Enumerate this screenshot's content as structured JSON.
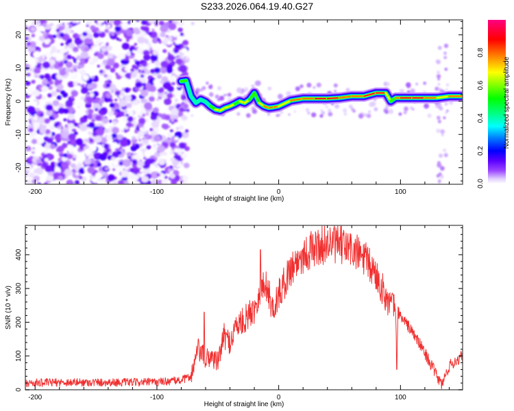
{
  "chart_data": [
    {
      "type": "heatmap",
      "title": "S233.2026.064.19.40.G27",
      "xlabel": "Height of straight line (km)",
      "ylabel": "Frequency (Hz)",
      "xlim": [
        -208,
        151
      ],
      "ylim": [
        -25,
        24.5
      ],
      "xticks": [
        -200,
        -100,
        0,
        100
      ],
      "yticks": [
        -20,
        -10,
        0,
        10,
        20
      ],
      "colorbar": {
        "label": "Normalized spectral amplitude",
        "range": [
          0.0,
          1.0
        ],
        "ticks": [
          "0.0",
          "0.2",
          "0.4",
          "0.6",
          "0.8"
        ],
        "colormap": [
          "#ffffff",
          "#e0ccff",
          "#9a44ff",
          "#5a00ff",
          "#0000ff",
          "#0080ff",
          "#00ffff",
          "#00ff80",
          "#00ff00",
          "#80ff00",
          "#ffff00",
          "#ff8000",
          "#ff0000",
          "#ff0080"
        ]
      },
      "noise_region_x": [
        -208,
        -75
      ],
      "ridge": {
        "x": [
          -80,
          -76,
          -72,
          -68,
          -64,
          -60,
          -56,
          -52,
          -48,
          -44,
          -40,
          -36,
          -32,
          -28,
          -24,
          -20,
          -16,
          -12,
          -8,
          -4,
          0,
          10,
          20,
          30,
          40,
          50,
          60,
          70,
          80,
          88,
          92,
          96,
          100,
          110,
          120,
          130,
          140,
          151
        ],
        "y": [
          6.0,
          6.2,
          1.5,
          -0.5,
          0.5,
          -0.2,
          -1.5,
          -2.5,
          -2.8,
          -2.0,
          -1.5,
          -0.8,
          0.0,
          -0.5,
          0.5,
          2.5,
          -0.5,
          -1.5,
          -2.0,
          -1.8,
          -1.5,
          0.2,
          0.8,
          0.8,
          0.8,
          1.0,
          1.5,
          1.5,
          2.5,
          2.5,
          0.0,
          1.0,
          1.0,
          1.0,
          1.0,
          1.0,
          1.5,
          1.5
        ],
        "amp": [
          0.45,
          0.6,
          0.35,
          0.3,
          0.4,
          0.35,
          0.45,
          0.6,
          0.7,
          0.65,
          0.7,
          0.6,
          0.6,
          0.65,
          0.7,
          0.5,
          0.6,
          0.8,
          0.85,
          0.8,
          0.7,
          0.75,
          0.85,
          0.9,
          0.95,
          0.85,
          0.8,
          0.9,
          0.95,
          0.9,
          0.4,
          0.6,
          0.9,
          0.95,
          0.95,
          0.6,
          0.85,
          0.9
        ]
      }
    },
    {
      "type": "line",
      "xlabel": "Height of straight line (km)",
      "ylabel": "SNR (10 * v/v)",
      "xlim": [
        -208,
        151
      ],
      "ylim": [
        0,
        487
      ],
      "xticks": [
        -200,
        -100,
        0,
        100
      ],
      "yticks": [
        0,
        100,
        200,
        300,
        400
      ],
      "line_color": "#f03030",
      "series": [
        {
          "name": "SNR",
          "x": [
            -208,
            -180,
            -150,
            -120,
            -100,
            -80,
            -72,
            -66,
            -60,
            -55,
            -50,
            -45,
            -40,
            -35,
            -30,
            -25,
            -20,
            -15,
            -10,
            -5,
            0,
            10,
            20,
            30,
            40,
            50,
            60,
            70,
            80,
            90,
            96,
            97,
            98,
            100,
            110,
            120,
            130,
            134,
            140,
            151
          ],
          "y": [
            20,
            22,
            22,
            22,
            23,
            28,
            40,
            120,
            90,
            100,
            80,
            160,
            140,
            190,
            200,
            220,
            240,
            300,
            310,
            240,
            280,
            360,
            400,
            420,
            435,
            430,
            415,
            390,
            340,
            260,
            240,
            60,
            230,
            220,
            170,
            110,
            40,
            15,
            70,
            100
          ]
        }
      ],
      "noise_amplitude": 25,
      "annotations": [
        {
          "x": -15,
          "y": 415,
          "label": ""
        },
        {
          "x": 97,
          "y": 60,
          "label": ""
        }
      ]
    }
  ]
}
